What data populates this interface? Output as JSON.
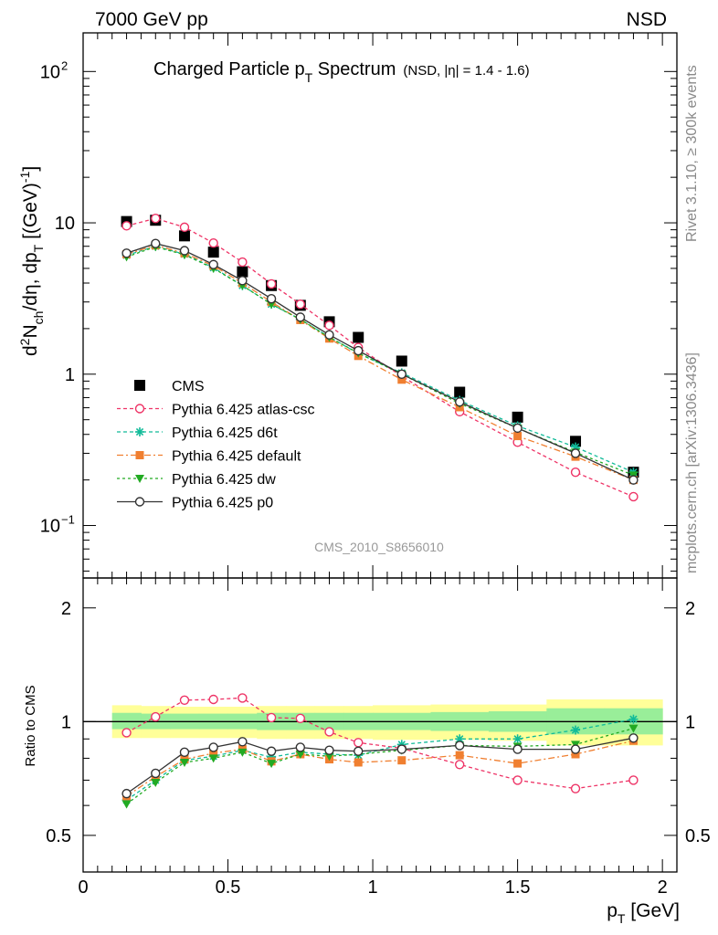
{
  "header": {
    "left": "7000 GeV pp",
    "right": "NSD"
  },
  "side": {
    "rivet": "Rivet 3.1.10, ≥ 300k events",
    "mcplots": "mcplots.cern.ch [arXiv:1306.3436]"
  },
  "main": {
    "title_main": "Charged Particle p",
    "title_sub": "T",
    "title_tail": " Spectrum",
    "title_small": "(NSD, |η| = 1.4 - 1.6)",
    "ylabel": "d²N_ch/dη, dp_T [(GeV)⁻¹]",
    "ylabel_parts": {
      "a": "d",
      "a_sup": "2",
      "b": "N",
      "b_sub": "ch",
      "c": "/dη, dp",
      "c_sub": "T",
      "d": " [(GeV)",
      "d_sup": "-1",
      "e": "]"
    },
    "watermark": "CMS_2010_S8656010",
    "yticks": [
      {
        "value": 0.1,
        "label": "10",
        "sup": "−1"
      },
      {
        "value": 1,
        "label": "1",
        "sup": ""
      },
      {
        "value": 10,
        "label": "10",
        "sup": ""
      },
      {
        "value": 100,
        "label": "10",
        "sup": "2"
      }
    ]
  },
  "ratio": {
    "ylabel": "Ratio to CMS",
    "yticks": [
      {
        "value": 0.5,
        "label": "0.5"
      },
      {
        "value": 1,
        "label": "1"
      },
      {
        "value": 2,
        "label": "2"
      }
    ]
  },
  "xaxis": {
    "label_p": "p",
    "label_sub": "T",
    "label_unit": " [GeV]",
    "ticks": [
      {
        "value": 0,
        "label": "0"
      },
      {
        "value": 0.5,
        "label": "0.5"
      },
      {
        "value": 1,
        "label": "1"
      },
      {
        "value": 1.5,
        "label": "1.5"
      },
      {
        "value": 2,
        "label": "2"
      }
    ]
  },
  "legend": [
    {
      "label": "CMS",
      "color": "#000000",
      "marker": "square",
      "dash": ""
    },
    {
      "label": "Pythia 6.425 atlas-csc",
      "color": "#ee3366",
      "marker": "open-circle",
      "dash": "4,3"
    },
    {
      "label": "Pythia 6.425 d6t",
      "color": "#11bb99",
      "marker": "star",
      "dash": "4,3"
    },
    {
      "label": "Pythia 6.425 default",
      "color": "#f07f30",
      "marker": "filled-square",
      "dash": "7,3,2,3"
    },
    {
      "label": "Pythia 6.425 dw",
      "color": "#22aa22",
      "marker": "triangle-down",
      "dash": "3,3"
    },
    {
      "label": "Pythia 6.425 p0",
      "color": "#333333",
      "marker": "open-circle",
      "dash": ""
    }
  ],
  "chart_data": [
    {
      "type": "scatter",
      "title": "Charged Particle pT Spectrum (NSD, |η| = 1.4 - 1.6)",
      "xlabel": "pT [GeV]",
      "ylabel": "d2Nch/dη, dpT [(GeV)-1]",
      "log_y": true,
      "xlim": [
        0,
        2.05
      ],
      "ylim": [
        0.045,
        180
      ],
      "grid": false,
      "legend_position": "center-left",
      "x": [
        0.15,
        0.25,
        0.35,
        0.45,
        0.55,
        0.65,
        0.75,
        0.85,
        0.95,
        1.1,
        1.3,
        1.5,
        1.7,
        1.9
      ],
      "series": [
        {
          "name": "CMS",
          "values": [
            10.2,
            10.4,
            8.2,
            6.4,
            4.75,
            3.85,
            2.85,
            2.22,
            1.75,
            1.22,
            0.76,
            0.52,
            0.36,
            0.225
          ]
        },
        {
          "name": "Pythia 6.425 atlas-csc",
          "values": [
            9.55,
            10.7,
            9.35,
            7.35,
            5.5,
            3.95,
            2.9,
            2.1,
            1.5,
            0.97,
            0.565,
            0.355,
            0.225,
            0.155
          ]
        },
        {
          "name": "Pythia 6.425 d6t",
          "values": [
            6.1,
            7.0,
            6.2,
            5.05,
            3.85,
            2.9,
            2.3,
            1.76,
            1.37,
            1.02,
            0.67,
            0.455,
            0.33,
            0.225
          ]
        },
        {
          "name": "Pythia 6.425 default",
          "values": [
            6.2,
            7.1,
            6.3,
            5.2,
            4.0,
            3.0,
            2.28,
            1.72,
            1.32,
            0.92,
            0.605,
            0.39,
            0.285,
            0.2
          ]
        },
        {
          "name": "Pythia 6.425 dw",
          "values": [
            5.95,
            6.95,
            6.15,
            5.0,
            3.85,
            2.9,
            2.3,
            1.75,
            1.38,
            1.0,
            0.64,
            0.44,
            0.305,
            0.215
          ]
        },
        {
          "name": "Pythia 6.425 p0",
          "values": [
            6.3,
            7.3,
            6.55,
            5.3,
            4.15,
            3.15,
            2.38,
            1.82,
            1.43,
            1.0,
            0.655,
            0.44,
            0.3,
            0.2
          ]
        }
      ]
    },
    {
      "type": "line",
      "title": "",
      "ylabel": "Ratio to CMS",
      "log_y": true,
      "xlim": [
        0,
        2.05
      ],
      "ylim": [
        0.4,
        2.4
      ],
      "x": [
        0.15,
        0.25,
        0.35,
        0.45,
        0.55,
        0.65,
        0.75,
        0.85,
        0.95,
        1.1,
        1.3,
        1.5,
        1.7,
        1.9
      ],
      "bands": {
        "edges": [
          0.1,
          0.2,
          0.3,
          0.4,
          0.5,
          0.6,
          0.7,
          0.8,
          0.9,
          1.0,
          1.2,
          1.4,
          1.6,
          1.8,
          2.0
        ],
        "stat_syst": [
          [
            0.905,
            1.105
          ],
          [
            0.905,
            1.1
          ],
          [
            0.905,
            1.095
          ],
          [
            0.905,
            1.095
          ],
          [
            0.905,
            1.095
          ],
          [
            0.9,
            1.1
          ],
          [
            0.9,
            1.1
          ],
          [
            0.9,
            1.1
          ],
          [
            0.9,
            1.1
          ],
          [
            0.895,
            1.105
          ],
          [
            0.895,
            1.11
          ],
          [
            0.89,
            1.11
          ],
          [
            0.865,
            1.145
          ],
          [
            0.865,
            1.145
          ]
        ],
        "stat": [
          [
            0.955,
            1.055
          ],
          [
            0.955,
            1.05
          ],
          [
            0.955,
            1.05
          ],
          [
            0.955,
            1.05
          ],
          [
            0.955,
            1.05
          ],
          [
            0.95,
            1.055
          ],
          [
            0.95,
            1.055
          ],
          [
            0.95,
            1.055
          ],
          [
            0.95,
            1.055
          ],
          [
            0.95,
            1.055
          ],
          [
            0.945,
            1.06
          ],
          [
            0.94,
            1.065
          ],
          [
            0.925,
            1.085
          ],
          [
            0.925,
            1.085
          ]
        ],
        "stat_color": "#99ee99",
        "syst_color": "#ffff99"
      },
      "series": [
        {
          "name": "Pythia 6.425 atlas-csc",
          "values": [
            0.935,
            1.03,
            1.14,
            1.145,
            1.155,
            1.025,
            1.02,
            0.94,
            0.88,
            0.85,
            0.77,
            0.7,
            0.665,
            0.7
          ]
        },
        {
          "name": "Pythia 6.425 d6t",
          "values": [
            0.62,
            0.7,
            0.79,
            0.81,
            0.84,
            0.805,
            0.83,
            0.82,
            0.815,
            0.87,
            0.9,
            0.9,
            0.95,
            1.015
          ]
        },
        {
          "name": "Pythia 6.425 default",
          "values": [
            0.635,
            0.715,
            0.795,
            0.825,
            0.845,
            0.785,
            0.82,
            0.795,
            0.78,
            0.79,
            0.815,
            0.775,
            0.82,
            0.89
          ]
        },
        {
          "name": "Pythia 6.425 dw",
          "values": [
            0.605,
            0.69,
            0.78,
            0.8,
            0.83,
            0.775,
            0.82,
            0.81,
            0.82,
            0.84,
            0.865,
            0.86,
            0.87,
            0.96
          ]
        },
        {
          "name": "Pythia 6.425 p0",
          "values": [
            0.645,
            0.73,
            0.83,
            0.855,
            0.885,
            0.835,
            0.855,
            0.84,
            0.835,
            0.845,
            0.865,
            0.845,
            0.845,
            0.905
          ]
        }
      ]
    }
  ]
}
